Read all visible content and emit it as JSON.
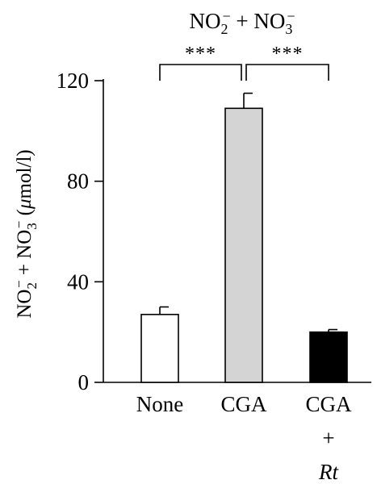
{
  "chart_data": {
    "type": "bar",
    "title_parts": [
      "NO",
      "2",
      "−",
      " + NO",
      "3",
      "−"
    ],
    "ylabel_parts": [
      "NO",
      "2",
      "−",
      " + NO",
      "3",
      "−",
      " (",
      "μ",
      "mol/l)"
    ],
    "categories": [
      {
        "lines": [
          "None"
        ],
        "italic_last": false
      },
      {
        "lines": [
          "CGA"
        ],
        "italic_last": false
      },
      {
        "lines": [
          "CGA",
          "+",
          "Rt"
        ],
        "italic_last": true
      }
    ],
    "values": [
      27,
      109,
      20
    ],
    "errors": [
      3,
      6,
      1
    ],
    "bar_fills": [
      "#ffffff",
      "#d4d4d4",
      "#000000"
    ],
    "ylim": [
      0,
      120
    ],
    "yticks": [
      0,
      40,
      80,
      120
    ],
    "significance": [
      {
        "from": 0,
        "to": 1,
        "label": "***"
      },
      {
        "from": 1,
        "to": 2,
        "label": "***"
      }
    ]
  }
}
